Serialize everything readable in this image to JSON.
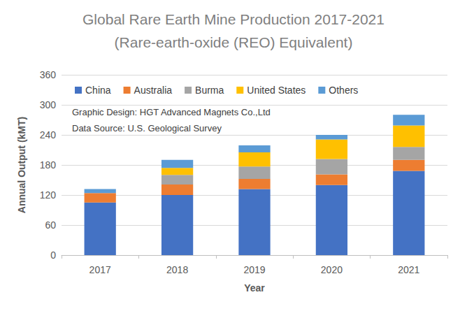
{
  "chart_data": {
    "type": "bar",
    "title": [
      "Global Rare Earth Mine Production 2017-2021",
      "(Rare-earth-oxide (REO) Equivalent)"
    ],
    "x_label": "Year",
    "y_label": "Annual Output (kMT)",
    "annotations": [
      "Graphic Design: HGT Advanced Magnets Co.,Ltd",
      "Data Source: U.S. Geological Survey"
    ],
    "categories": [
      "2017",
      "2018",
      "2019",
      "2020",
      "2021"
    ],
    "series": [
      {
        "name": "China",
        "color": "#4472c4",
        "values": [
          105,
          120,
          132,
          140,
          168
        ]
      },
      {
        "name": "Australia",
        "color": "#ed7d31",
        "values": [
          19,
          21,
          20,
          21,
          22
        ]
      },
      {
        "name": "Burma",
        "color": "#a5a5a5",
        "values": [
          0,
          19,
          25,
          31,
          26
        ]
      },
      {
        "name": "United States",
        "color": "#ffc000",
        "values": [
          0,
          14,
          28,
          39,
          43
        ]
      },
      {
        "name": "Others",
        "color": "#5b9bd5",
        "values": [
          8,
          16,
          14,
          9,
          21
        ]
      }
    ],
    "ylim": [
      0,
      360
    ],
    "yticks": [
      0,
      60,
      120,
      180,
      240,
      300,
      360
    ],
    "stacked": true,
    "grid": true,
    "legend": "top-left"
  }
}
